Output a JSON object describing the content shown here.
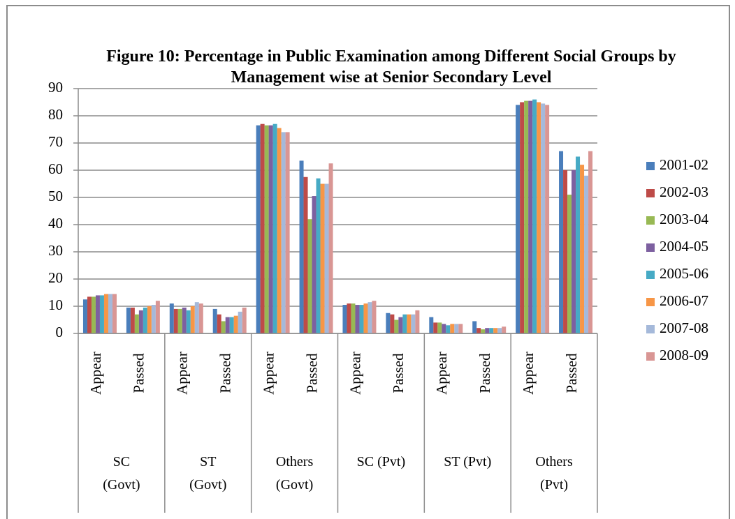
{
  "chart_data": {
    "type": "bar",
    "title": "Figure 10: Percentage in Public Examination among Different Social Groups by Management wise at Senior Secondary Level",
    "categories": [
      "Appear",
      "Passed",
      "Appear",
      "Passed",
      "Appear",
      "Passed",
      "Appear",
      "Passed",
      "Appear",
      "Passed",
      "Appear",
      "Passed"
    ],
    "groups": [
      "SC (Govt)",
      "ST (Govt)",
      "Others (Govt)",
      "SC (Pvt)",
      "ST (Pvt)",
      "Others (Pvt)"
    ],
    "series": [
      {
        "name": "2001-02",
        "color": "#4a7ebb",
        "values": [
          12.5,
          9.5,
          11,
          9,
          76.5,
          63.5,
          10.5,
          7.5,
          6,
          4.5,
          84,
          67
        ]
      },
      {
        "name": "2002-03",
        "color": "#be4b48",
        "values": [
          13.5,
          9.5,
          9,
          7,
          77,
          57.5,
          11,
          7,
          4,
          2,
          85,
          60
        ]
      },
      {
        "name": "2003-04",
        "color": "#98b954",
        "values": [
          13.5,
          7,
          9,
          4.5,
          76.5,
          42,
          11,
          5,
          4,
          1.5,
          85.5,
          51
        ]
      },
      {
        "name": "2004-05",
        "color": "#7d60a0",
        "values": [
          14,
          8.5,
          9.5,
          6,
          76.5,
          50.5,
          10.5,
          6,
          3.5,
          2,
          85.5,
          60
        ]
      },
      {
        "name": "2005-06",
        "color": "#46aac5",
        "values": [
          14,
          9.5,
          8.5,
          6,
          77,
          57,
          10.5,
          7,
          3,
          2,
          86,
          65
        ]
      },
      {
        "name": "2006-07",
        "color": "#f79646",
        "values": [
          14.5,
          10,
          10,
          6.5,
          75.5,
          55,
          11,
          7,
          3.5,
          2,
          85,
          62
        ]
      },
      {
        "name": "2007-08",
        "color": "#a5b9da",
        "values": [
          14.5,
          10.5,
          11.5,
          8,
          74,
          55,
          11.5,
          7,
          3.5,
          2,
          84.5,
          58
        ]
      },
      {
        "name": "2008-09",
        "color": "#d99694",
        "values": [
          14.5,
          12,
          11,
          9.5,
          74,
          62.5,
          12,
          8.5,
          3.5,
          2.5,
          84,
          67
        ]
      }
    ],
    "ylim": [
      0,
      90
    ],
    "yticks": [
      0,
      10,
      20,
      30,
      40,
      50,
      60,
      70,
      80,
      90
    ],
    "grid": true,
    "legend": "right"
  }
}
